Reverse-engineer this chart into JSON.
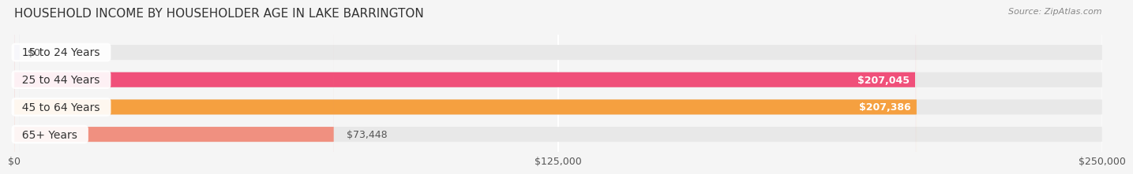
{
  "title": "HOUSEHOLD INCOME BY HOUSEHOLDER AGE IN LAKE BARRINGTON",
  "source": "Source: ZipAtlas.com",
  "categories": [
    "15 to 24 Years",
    "25 to 44 Years",
    "45 to 64 Years",
    "65+ Years"
  ],
  "values": [
    0,
    207045,
    207386,
    73448
  ],
  "bar_colors": [
    "#a0a0d0",
    "#f0507a",
    "#f5a040",
    "#f09080"
  ],
  "label_colors": [
    "#555555",
    "#ffffff",
    "#ffffff",
    "#555555"
  ],
  "value_labels": [
    "$0",
    "$207,045",
    "$207,386",
    "$73,448"
  ],
  "xlim": [
    0,
    250000
  ],
  "xticks": [
    0,
    125000,
    250000
  ],
  "xtick_labels": [
    "$0",
    "$125,000",
    "$250,000"
  ],
  "bg_color": "#f5f5f5",
  "bar_bg_color": "#e8e8e8",
  "title_fontsize": 11,
  "label_fontsize": 10,
  "value_fontsize": 9,
  "source_fontsize": 8
}
